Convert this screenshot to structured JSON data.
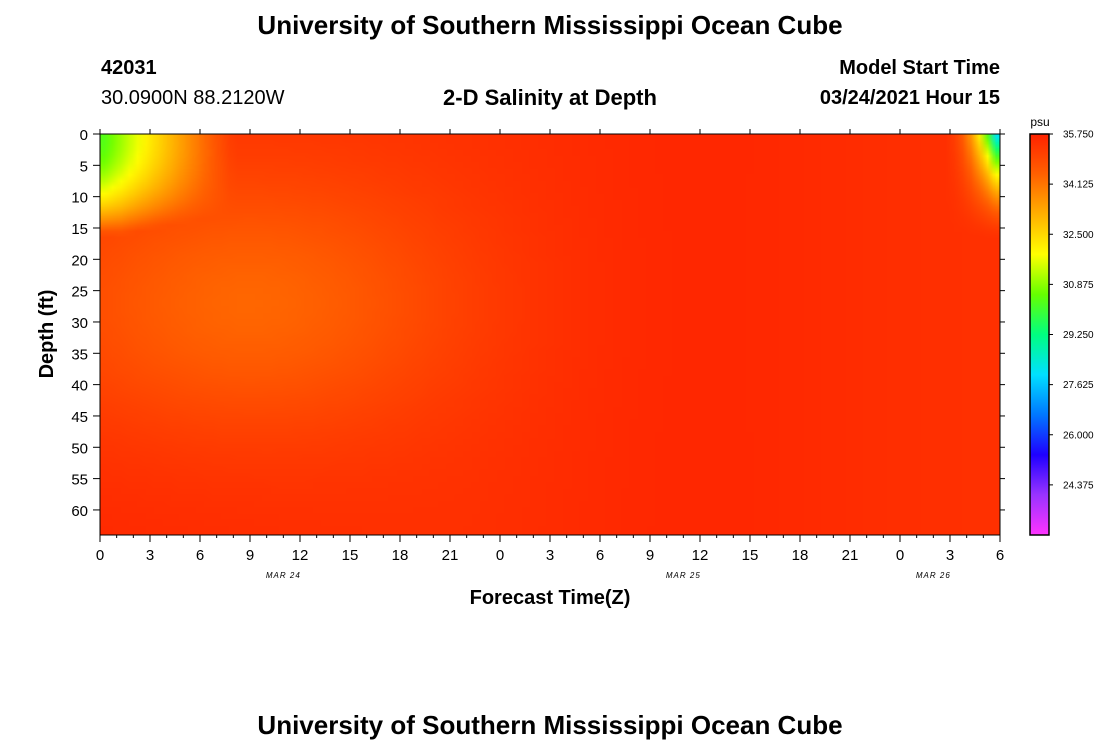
{
  "header": {
    "title": "University of Southern Mississippi Ocean Cube",
    "station_id": "42031",
    "station_location": "30.0900N 88.2120W",
    "plot_title": "2-D Salinity at Depth",
    "model_start_label": "Model Start Time",
    "model_start_time": "03/24/2021 Hour 15"
  },
  "footer": {
    "title": "University of Southern Mississippi Ocean Cube"
  },
  "colors": {
    "low": "#ff00ff",
    "high": "#ff2000",
    "scale": [
      "#ff33ff",
      "#9933ff",
      "#1f00ff",
      "#0077ff",
      "#00e0ff",
      "#00ff80",
      "#66ff00",
      "#ffff00",
      "#ffb000",
      "#ff6000",
      "#ff2200"
    ]
  },
  "chart_data": {
    "type": "heatmap",
    "title": "2-D Salinity at Depth",
    "xlabel": "Forecast Time(Z)",
    "ylabel": "Depth (ft)",
    "x_tick_labels": [
      "0",
      "3",
      "6",
      "9",
      "12",
      "15",
      "18",
      "21",
      "0",
      "3",
      "6",
      "9",
      "12",
      "15",
      "18",
      "21",
      "0",
      "3",
      "6"
    ],
    "x_range_hours": [
      0,
      54
    ],
    "date_labels": [
      {
        "label": "MAR 24",
        "hour": 11
      },
      {
        "label": "MAR 25",
        "hour": 35
      },
      {
        "label": "MAR 26",
        "hour": 50
      }
    ],
    "y_tick_labels": [
      "0",
      "5",
      "10",
      "15",
      "20",
      "25",
      "30",
      "35",
      "40",
      "45",
      "50",
      "55",
      "60"
    ],
    "y_range_ft": [
      0,
      64
    ],
    "colorbar": {
      "unit": "psu",
      "labels": [
        "35.750",
        "34.125",
        "32.500",
        "30.875",
        "29.250",
        "27.625",
        "26.000",
        "24.375"
      ],
      "range": [
        22.75,
        35.75
      ]
    }
  }
}
